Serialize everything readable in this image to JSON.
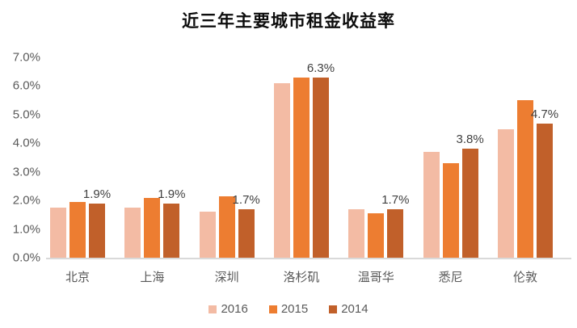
{
  "title": "近三年主要城市租金收益率",
  "chart_data": {
    "type": "bar",
    "title": "近三年主要城市租金收益率",
    "categories": [
      "北京",
      "上海",
      "深圳",
      "洛杉矶",
      "温哥华",
      "悉尼",
      "伦敦"
    ],
    "series": [
      {
        "name": "2016",
        "color": "#F3BBA4",
        "values": [
          1.75,
          1.75,
          1.6,
          6.1,
          1.7,
          3.7,
          4.5
        ]
      },
      {
        "name": "2015",
        "color": "#ED7D31",
        "values": [
          1.95,
          2.1,
          2.15,
          6.3,
          1.55,
          3.3,
          5.5
        ]
      },
      {
        "name": "2014",
        "color": "#C1602A",
        "values": [
          1.9,
          1.9,
          1.7,
          6.3,
          1.7,
          3.8,
          4.7
        ],
        "data_labels": [
          "1.9%",
          "1.9%",
          "1.7%",
          "6.3%",
          "1.7%",
          "3.8%",
          "4.7%"
        ]
      }
    ],
    "y_ticks": [
      "7.0%",
      "6.0%",
      "5.0%",
      "4.0%",
      "3.0%",
      "2.0%",
      "1.0%",
      "0.0%"
    ],
    "ylim": [
      0,
      7
    ],
    "grid": false,
    "legend_position": "bottom",
    "legend": [
      "2016",
      "2015",
      "2014"
    ],
    "axis_line_color": "#D9D9D9",
    "tick_label_color": "#595959",
    "data_label_color": "#404040",
    "title_color": "#0D0D0D"
  }
}
